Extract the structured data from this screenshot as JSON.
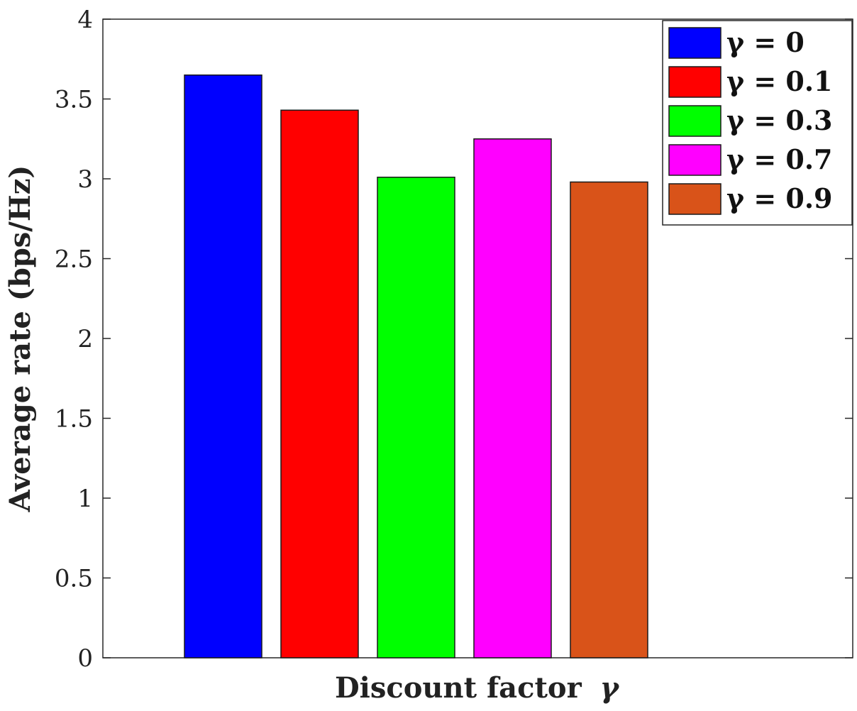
{
  "chart_data": {
    "type": "bar",
    "xlabel": "Discount factor",
    "xlabel_symbol": "γ",
    "ylabel": "Average rate (bps/Hz)",
    "ylim": [
      0,
      4
    ],
    "yticks": [
      "0",
      "0.5",
      "1",
      "1.5",
      "2",
      "2.5",
      "3",
      "3.5",
      "4"
    ],
    "grid": false,
    "legend_position": "top-right",
    "series": [
      {
        "name": "γ = 0",
        "value": 3.65,
        "color": "#0000ff"
      },
      {
        "name": "γ = 0.1",
        "value": 3.43,
        "color": "#ff0000"
      },
      {
        "name": "γ = 0.3",
        "value": 3.01,
        "color": "#00ff00"
      },
      {
        "name": "γ = 0.7",
        "value": 3.25,
        "color": "#ff00ff"
      },
      {
        "name": "γ = 0.9",
        "value": 2.98,
        "color": "#d95319"
      }
    ]
  }
}
